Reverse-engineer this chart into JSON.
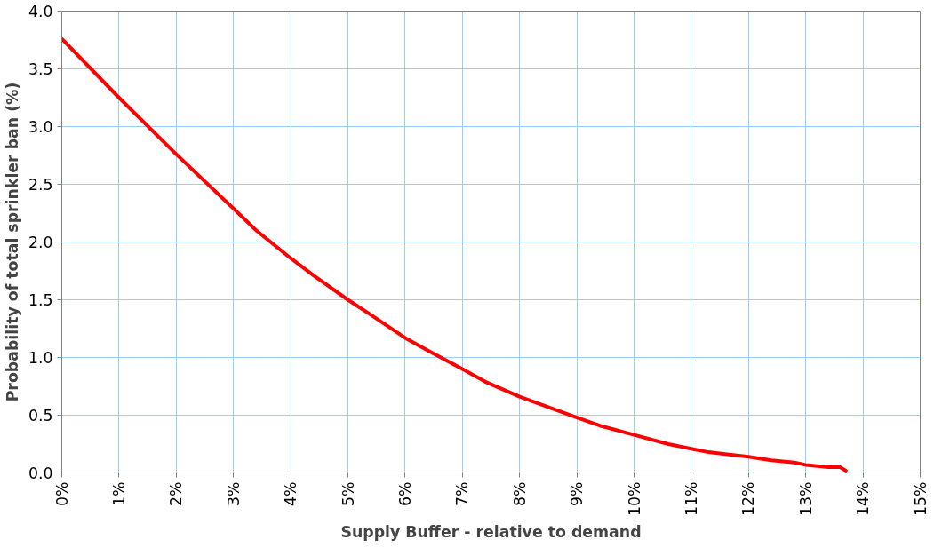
{
  "chart_data": {
    "type": "line",
    "xlabel": "Supply Buffer - relative to demand",
    "ylabel": "Probability of total sprinkler ban (%)",
    "xlim": [
      0,
      15
    ],
    "ylim": [
      0,
      4
    ],
    "xticks": [
      {
        "value": 0,
        "label": "0%"
      },
      {
        "value": 1,
        "label": "1%"
      },
      {
        "value": 2,
        "label": "2%"
      },
      {
        "value": 3,
        "label": "3%"
      },
      {
        "value": 4,
        "label": "4%"
      },
      {
        "value": 5,
        "label": "5%"
      },
      {
        "value": 6,
        "label": "6%"
      },
      {
        "value": 7,
        "label": "7%"
      },
      {
        "value": 8,
        "label": "8%"
      },
      {
        "value": 9,
        "label": "9%"
      },
      {
        "value": 10,
        "label": "10%"
      },
      {
        "value": 11,
        "label": "11%"
      },
      {
        "value": 12,
        "label": "12%"
      },
      {
        "value": 13,
        "label": "13%"
      },
      {
        "value": 14,
        "label": "14%"
      },
      {
        "value": 15,
        "label": "15%"
      }
    ],
    "yticks": [
      {
        "value": 0,
        "label": "0.0"
      },
      {
        "value": 0.5,
        "label": "0.5"
      },
      {
        "value": 1,
        "label": "1.0"
      },
      {
        "value": 1.5,
        "label": "1.5"
      },
      {
        "value": 2,
        "label": "2.0"
      },
      {
        "value": 2.5,
        "label": "2.5"
      },
      {
        "value": 3,
        "label": "3.0"
      },
      {
        "value": 3.5,
        "label": "3.5"
      },
      {
        "value": 4,
        "label": "4.0"
      }
    ],
    "grid": true,
    "marker": "none",
    "line_style": "solid",
    "series": [
      {
        "color": "#ff0000",
        "x": [
          0,
          1,
          2,
          3,
          3.4,
          4,
          4.4,
          5,
          5.4,
          6,
          6.4,
          7,
          7.4,
          8,
          9,
          9.4,
          10,
          10.6,
          11,
          11.3,
          12,
          12.4,
          12.8,
          13,
          13.4,
          13.6,
          13.7
        ],
        "values": [
          3.76,
          3.25,
          2.76,
          2.29,
          2.1,
          1.86,
          1.71,
          1.5,
          1.37,
          1.17,
          1.06,
          0.9,
          0.79,
          0.66,
          0.48,
          0.41,
          0.33,
          0.25,
          0.21,
          0.18,
          0.14,
          0.11,
          0.09,
          0.07,
          0.05,
          0.05,
          0.02
        ]
      }
    ]
  }
}
